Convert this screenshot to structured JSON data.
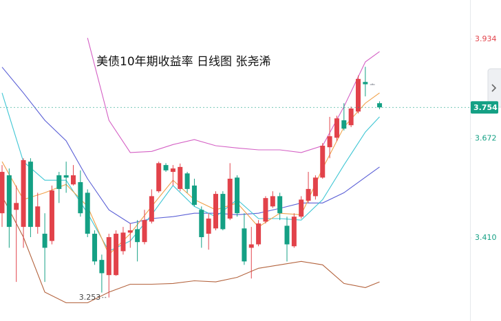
{
  "chart_data": {
    "type": "candlestick",
    "title": "美债10年期收益率 日线图 张尧浠",
    "up_color": "#e2424a",
    "down_color": "#14a084",
    "flat_color": "#8a8f99",
    "ylim": [
      3.191,
      4.037
    ],
    "yticks": [
      {
        "value": 3.41,
        "label": "3.410"
      },
      3.672,
      3.934
    ],
    "last_price": 3.754,
    "min_label": 3.253,
    "open": [
      3.475,
      3.575,
      3.484,
      3.439,
      3.611,
      3.439,
      3.421,
      3.402,
      3.575,
      3.575,
      3.551,
      3.557,
      3.529,
      3.421,
      3.352,
      3.312,
      3.312,
      3.375,
      3.424,
      3.433,
      3.399,
      3.453,
      3.533,
      3.602,
      3.584,
      3.539,
      3.58,
      3.548,
      3.484,
      3.421,
      3.435,
      3.526,
      3.461,
      3.569,
      3.435,
      3.384,
      3.393,
      3.453,
      3.493,
      3.52,
      3.442,
      3.388,
      3.466,
      3.508,
      3.52,
      3.569,
      3.649,
      3.674,
      3.72,
      3.707,
      3.743,
      3.821,
      3.815,
      3.765
    ],
    "high": [
      3.602,
      3.593,
      3.548,
      3.62,
      3.62,
      3.529,
      3.475,
      3.548,
      3.584,
      3.611,
      3.602,
      3.588,
      3.538,
      3.43,
      3.366,
      3.421,
      3.43,
      3.439,
      3.448,
      3.457,
      3.484,
      3.538,
      3.611,
      3.607,
      3.602,
      3.606,
      3.584,
      3.566,
      3.493,
      3.475,
      3.533,
      3.533,
      3.607,
      3.575,
      3.475,
      3.439,
      3.457,
      3.52,
      3.533,
      3.529,
      3.466,
      3.475,
      3.52,
      3.584,
      3.575,
      3.66,
      3.729,
      3.732,
      3.765,
      3.756,
      3.838,
      3.861,
      3.817,
      3.77
    ],
    "low": [
      3.439,
      3.384,
      3.294,
      3.384,
      3.412,
      3.421,
      3.294,
      3.393,
      3.502,
      3.529,
      3.548,
      3.466,
      3.412,
      3.339,
      3.266,
      3.253,
      3.31,
      3.366,
      3.384,
      3.348,
      3.393,
      3.448,
      3.529,
      3.584,
      3.548,
      3.533,
      3.529,
      3.493,
      3.384,
      3.379,
      3.43,
      3.43,
      3.457,
      3.466,
      3.339,
      3.303,
      3.388,
      3.448,
      3.489,
      3.457,
      3.348,
      3.384,
      3.461,
      3.502,
      3.511,
      3.566,
      3.62,
      3.665,
      3.693,
      3.702,
      3.738,
      3.783,
      3.813,
      3.749
    ],
    "close": [
      3.584,
      3.439,
      3.502,
      3.615,
      3.439,
      3.493,
      3.384,
      3.535,
      3.539,
      3.569,
      3.575,
      3.475,
      3.421,
      3.348,
      3.317,
      3.412,
      3.421,
      3.424,
      3.43,
      3.399,
      3.457,
      3.52,
      3.607,
      3.588,
      3.593,
      3.597,
      3.539,
      3.497,
      3.412,
      3.461,
      3.526,
      3.433,
      3.566,
      3.475,
      3.348,
      3.393,
      3.448,
      3.515,
      3.52,
      3.475,
      3.393,
      3.466,
      3.511,
      3.539,
      3.569,
      3.653,
      3.678,
      3.725,
      3.698,
      3.751,
      3.829,
      3.815,
      3.815,
      3.754
    ],
    "lines": [
      {
        "color": "#d45fc4",
        "x": [
          0,
          3,
          6,
          9,
          12,
          15,
          18,
          21,
          24,
          27,
          30,
          33,
          36,
          39,
          42,
          45,
          48,
          51,
          53
        ],
        "values": [
          null,
          null,
          null,
          null,
          3.937,
          3.72,
          3.635,
          3.638,
          3.656,
          3.669,
          3.653,
          3.647,
          3.642,
          3.642,
          3.635,
          3.653,
          3.756,
          3.874,
          3.901
        ]
      },
      {
        "color": "#b3623c",
        "x": [
          0,
          3,
          6,
          9,
          12,
          15,
          18,
          21,
          24,
          27,
          30,
          33,
          36,
          39,
          42,
          45,
          48,
          51,
          53
        ],
        "values": [
          3.52,
          3.412,
          3.267,
          3.239,
          3.239,
          3.267,
          3.288,
          3.288,
          3.29,
          3.297,
          3.294,
          3.306,
          3.33,
          3.339,
          3.348,
          3.339,
          3.29,
          3.279,
          3.294
        ]
      },
      {
        "color": "#5a5fd6",
        "x": [
          0,
          3,
          6,
          9,
          12,
          15,
          18,
          21,
          24,
          27,
          30,
          33,
          36,
          39,
          42,
          45,
          48,
          51,
          53
        ],
        "values": [
          3.86,
          3.792,
          3.72,
          3.666,
          3.566,
          3.484,
          3.448,
          3.461,
          3.466,
          3.475,
          3.475,
          3.471,
          3.475,
          3.488,
          3.502,
          3.502,
          3.529,
          3.57,
          3.597
        ]
      },
      {
        "color": "#3fc6d4",
        "x": [
          0,
          3,
          6,
          9,
          12,
          15,
          18,
          21,
          24,
          27,
          30,
          33,
          36,
          39,
          42,
          45,
          48,
          51,
          53
        ],
        "values": [
          3.792,
          3.611,
          3.562,
          3.562,
          3.475,
          3.375,
          3.402,
          3.471,
          3.548,
          3.493,
          3.466,
          3.511,
          3.461,
          3.461,
          3.457,
          3.511,
          3.602,
          3.689,
          3.729
        ]
      },
      {
        "color": "#f0a048",
        "x": [
          0,
          3,
          6,
          9,
          12,
          15,
          18,
          21,
          24,
          27,
          30,
          33,
          36,
          39,
          42,
          45,
          48,
          51,
          53
        ],
        "values": [
          3.611,
          3.511,
          3.529,
          3.551,
          3.493,
          3.366,
          3.421,
          3.493,
          3.562,
          3.511,
          3.484,
          3.502,
          3.439,
          3.475,
          3.471,
          3.593,
          3.702,
          3.765,
          3.792
        ]
      }
    ]
  }
}
